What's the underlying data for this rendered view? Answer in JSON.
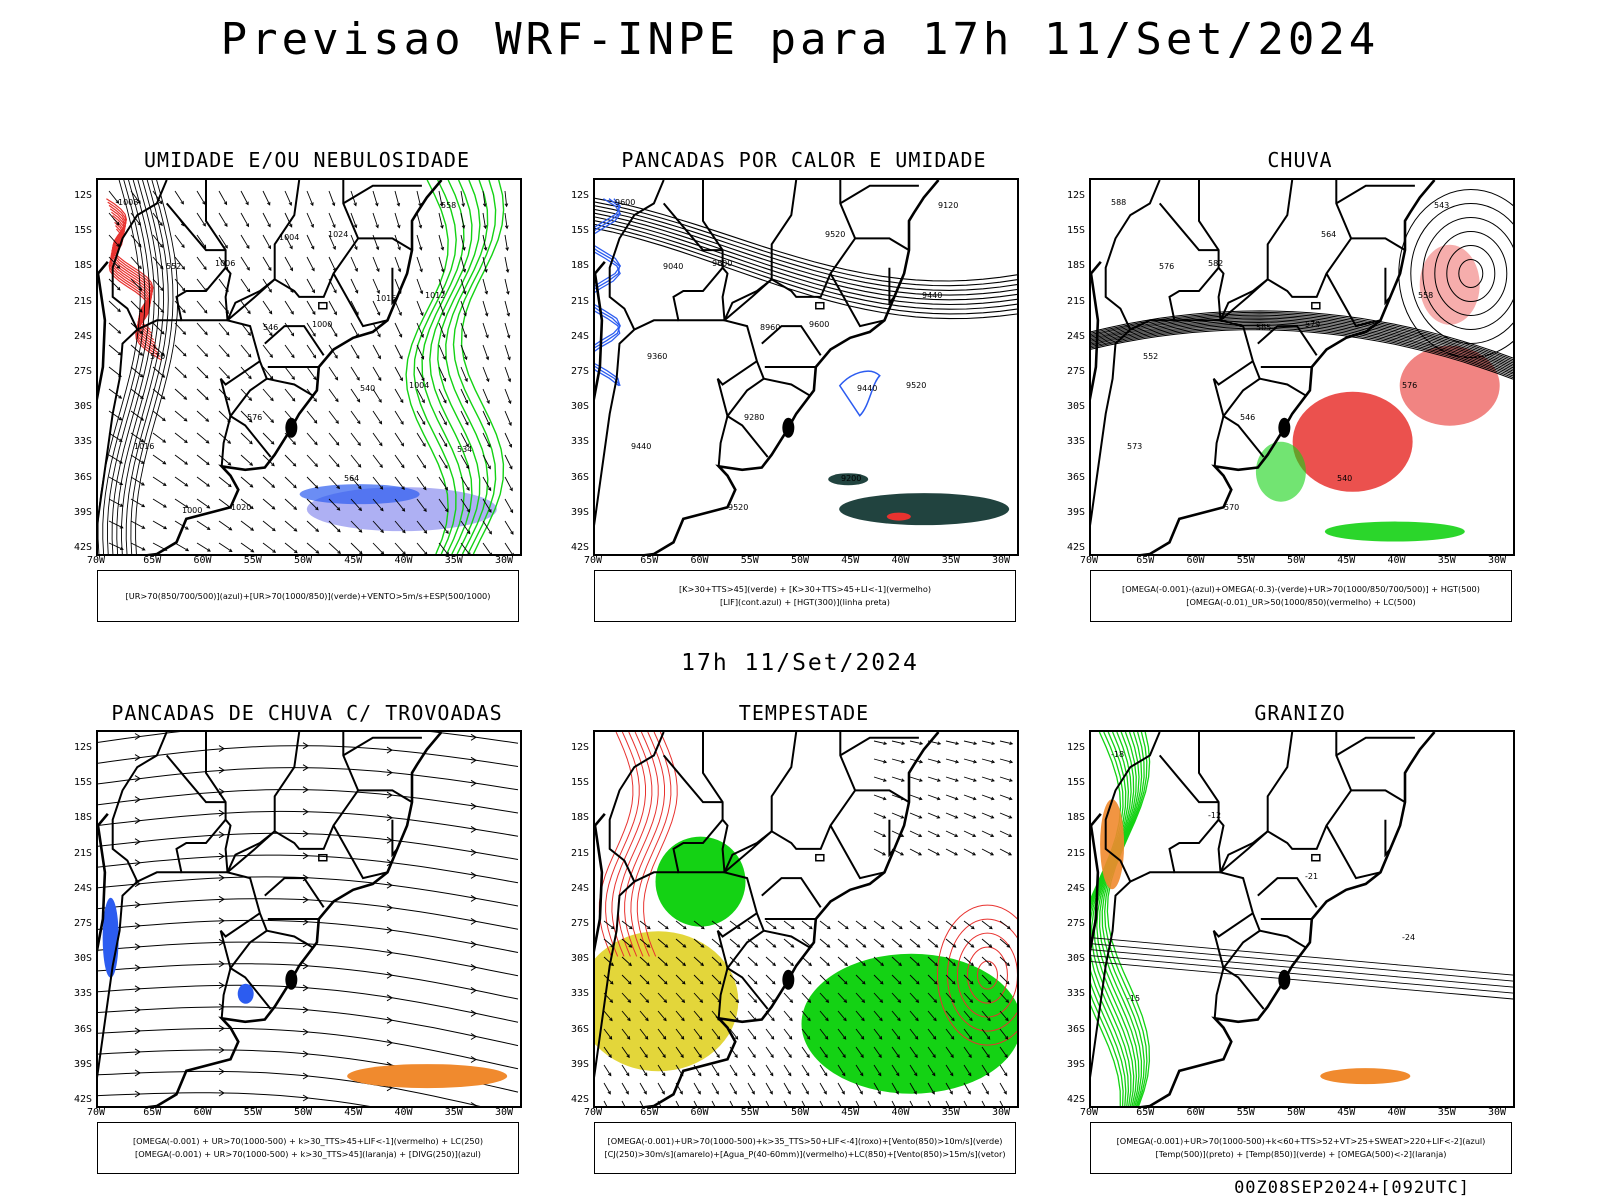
{
  "title": "Previsao WRF-INPE  para 17h 11/Set/2024",
  "mid_title": "17h 11/Set/2024",
  "footer": "00Z08SEP2024+[092UTC]",
  "lat_labels": [
    "12S",
    "15S",
    "18S",
    "21S",
    "24S",
    "27S",
    "30S",
    "33S",
    "36S",
    "39S",
    "42S"
  ],
  "lon_labels": [
    "70W",
    "65W",
    "60W",
    "55W",
    "50W",
    "45W",
    "40W",
    "35W",
    "30W"
  ],
  "colors": {
    "red": "#e8322f",
    "green": "#14d214",
    "blue": "#2c5cf0",
    "lavender": "#9a9cf0",
    "orange": "#f08a2e",
    "yellow": "#e3d63a",
    "darkteal": "#21433f"
  },
  "panels": [
    {
      "id": "umidade",
      "title": "UMIDADE E/OU NEBULOSIDADE",
      "legend": [
        "[UR>70(850/700/500)](azul)+[UR>70(1000/850)](verde)+VENTO>5m/s+ESP(500/1000)"
      ],
      "contour_labels": [
        "1008",
        "1006",
        "1000",
        "1004",
        "1016",
        "1020",
        "1024",
        "1012",
        "570",
        "576",
        "564",
        "558",
        "552",
        "546",
        "540",
        "534",
        "1000",
        "1004",
        "1016"
      ]
    },
    {
      "id": "pancadas-calor",
      "title": "PANCADAS POR CALOR E UMIDADE",
      "legend": [
        "[K>30+TTS>45](verde) + [K>30+TTS>45+LI<-1](vermelho)",
        "[LIF](cont.azul) + [HGT(300)](linha preta)"
      ],
      "contour_labels": [
        "9600",
        "9600",
        "9600",
        "9520",
        "9440",
        "9520",
        "9520",
        "9440",
        "9360",
        "9280",
        "9200",
        "9120",
        "9040",
        "8960",
        "9440"
      ]
    },
    {
      "id": "chuva",
      "title": "CHUVA",
      "legend": [
        "[OMEGA(-0.001)-(azul)+OMEGA(-0.3)-(verde)+UR>70(1000/850/700/500)] + HGT(500)",
        "[OMEGA(-0.01)_UR>50(1000/850)(vermelho) + LC(500)"
      ],
      "contour_labels": [
        "588",
        "582",
        "579",
        "576",
        "573",
        "570",
        "564",
        "558",
        "552",
        "546",
        "540",
        "543",
        "576",
        "585"
      ]
    },
    {
      "id": "trovoadas",
      "title": "PANCADAS DE CHUVA C/ TROVOADAS",
      "legend": [
        "[OMEGA(-0.001) + UR>70(1000-500) + k>30_TTS>45+LIF<-1](vermelho) + LC(250)",
        "[OMEGA(-0.001) + UR>70(1000-500) + k>30_TTS>45](laranja) + [DIVG(250)](azul)"
      ],
      "contour_labels": []
    },
    {
      "id": "tempestade",
      "title": "TEMPESTADE",
      "legend": [
        "[OMEGA(-0.001)+UR>70(1000-500)+k>35_TTS>50+LIF<-4](roxo)+[Vento(850)>10m/s](verde)",
        "[CJ(250)>30m/s](amarelo)+[Agua_P(40-60mm)](vermelho)+LC(850)+[Vento(850)>15m/s](vetor)"
      ],
      "contour_labels": []
    },
    {
      "id": "granizo",
      "title": "GRANIZO",
      "legend": [
        "[OMEGA(-0.001)+UR>70(1000-500)+k<60+TTS>52+VT>25+SWEAT>220+LIF<-2](azul)",
        "[Temp(500)](preto) + [Temp(850)](verde) + [OMEGA(500)<-2](laranja)"
      ],
      "contour_labels": [
        "-18",
        "-12",
        "-21",
        "-24",
        "-15"
      ]
    }
  ]
}
